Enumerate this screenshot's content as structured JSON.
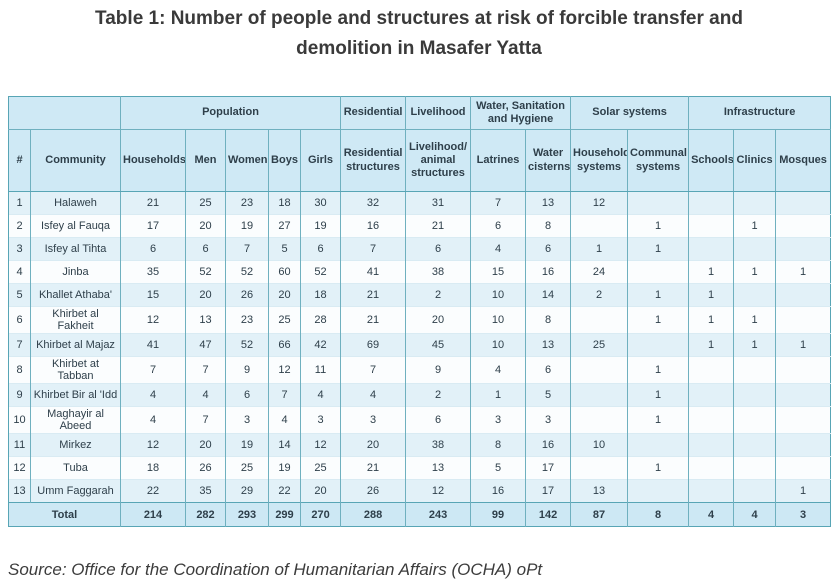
{
  "title": {
    "line1": "Table 1: Number of people and structures at risk of forcible transfer and",
    "line2": "demolition in Masafer Yatta"
  },
  "table": {
    "groups": [
      {
        "label": "",
        "span": 2
      },
      {
        "label": "Population",
        "span": 5
      },
      {
        "label": "Residential",
        "span": 1
      },
      {
        "label": "Livelihood",
        "span": 1
      },
      {
        "label": "Water, Sanitation and Hygiene",
        "span": 2
      },
      {
        "label": "Solar systems",
        "span": 2
      },
      {
        "label": "Infrastructure",
        "span": 3
      }
    ],
    "columns": [
      "#",
      "Community",
      "Households",
      "Men",
      "Women",
      "Boys",
      "Girls",
      "Residential structures",
      "Livelihood/ animal structures",
      "Latrines",
      "Water cisterns",
      "Household systems",
      "Communal systems",
      "Schools",
      "Clinics",
      "Mosques"
    ],
    "rows": [
      [
        "1",
        "Halaweh",
        "21",
        "25",
        "23",
        "18",
        "30",
        "32",
        "31",
        "7",
        "13",
        "12",
        "",
        "",
        "",
        ""
      ],
      [
        "2",
        "Isfey al Fauqa",
        "17",
        "20",
        "19",
        "27",
        "19",
        "16",
        "21",
        "6",
        "8",
        "",
        "1",
        "",
        "1",
        ""
      ],
      [
        "3",
        "Isfey al Tihta",
        "6",
        "6",
        "7",
        "5",
        "6",
        "7",
        "6",
        "4",
        "6",
        "1",
        "1",
        "",
        "",
        ""
      ],
      [
        "4",
        "Jinba",
        "35",
        "52",
        "52",
        "60",
        "52",
        "41",
        "38",
        "15",
        "16",
        "24",
        "",
        "1",
        "1",
        "1"
      ],
      [
        "5",
        "Khallet Athaba'",
        "15",
        "20",
        "26",
        "20",
        "18",
        "21",
        "2",
        "10",
        "14",
        "2",
        "1",
        "1",
        "",
        ""
      ],
      [
        "6",
        "Khirbet al Fakheit",
        "12",
        "13",
        "23",
        "25",
        "28",
        "21",
        "20",
        "10",
        "8",
        "",
        "1",
        "1",
        "1",
        ""
      ],
      [
        "7",
        "Khirbet al Majaz",
        "41",
        "47",
        "52",
        "66",
        "42",
        "69",
        "45",
        "10",
        "13",
        "25",
        "",
        "1",
        "1",
        "1"
      ],
      [
        "8",
        "Khirbet at Tabban",
        "7",
        "7",
        "9",
        "12",
        "11",
        "7",
        "9",
        "4",
        "6",
        "",
        "1",
        "",
        "",
        ""
      ],
      [
        "9",
        "Khirbet Bir al 'Idd",
        "4",
        "4",
        "6",
        "7",
        "4",
        "4",
        "2",
        "1",
        "5",
        "",
        "1",
        "",
        "",
        ""
      ],
      [
        "10",
        "Maghayir al Abeed",
        "4",
        "7",
        "3",
        "4",
        "3",
        "3",
        "6",
        "3",
        "3",
        "",
        "1",
        "",
        "",
        ""
      ],
      [
        "11",
        "Mirkez",
        "12",
        "20",
        "19",
        "14",
        "12",
        "20",
        "38",
        "8",
        "16",
        "10",
        "",
        "",
        "",
        ""
      ],
      [
        "12",
        "Tuba",
        "18",
        "26",
        "25",
        "19",
        "25",
        "21",
        "13",
        "5",
        "17",
        "",
        "1",
        "",
        "",
        ""
      ],
      [
        "13",
        "Umm Faggarah",
        "22",
        "35",
        "29",
        "22",
        "20",
        "26",
        "12",
        "16",
        "17",
        "13",
        "",
        "",
        "",
        "1"
      ]
    ],
    "total_label": "Total",
    "totals": [
      "214",
      "282",
      "293",
      "299",
      "270",
      "288",
      "243",
      "99",
      "142",
      "87",
      "8",
      "4",
      "4",
      "3"
    ]
  },
  "source": "Source: Office for the Coordination of Humanitarian Affairs (OCHA) oPt",
  "colors": {
    "header_bg": "#cfe9f5",
    "stripe_row_bg": "#e2f1f8",
    "plain_row_bg": "#fbfdfe",
    "total_row_bg": "#cde8f4",
    "outer_border": "#58a5b5",
    "inner_border": "#6fb0bf",
    "header_text": "#24404e",
    "body_text": "#2e3f4a",
    "title_text": "#3a3a3a"
  }
}
